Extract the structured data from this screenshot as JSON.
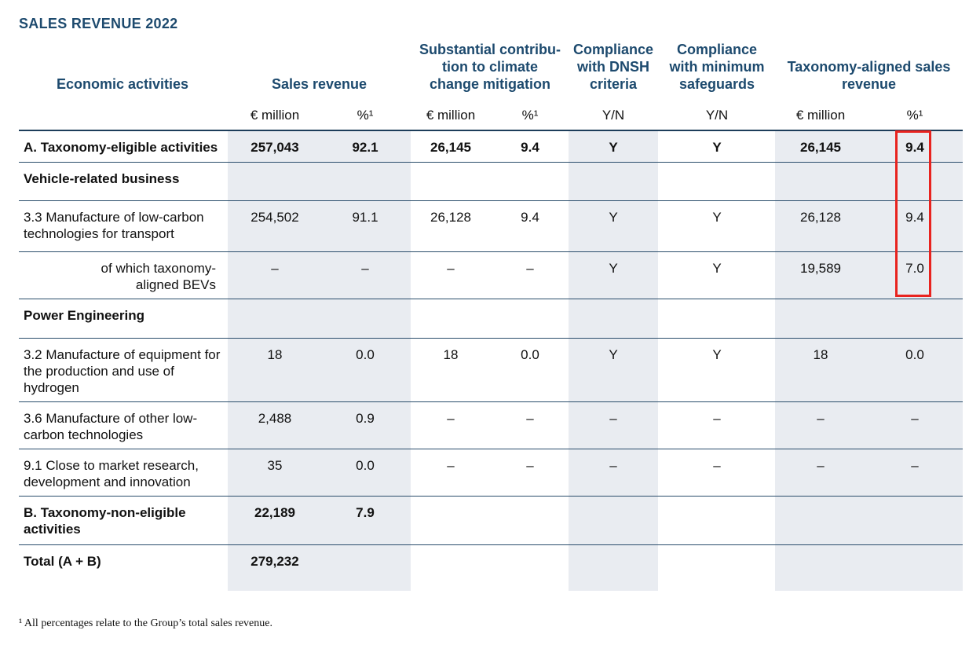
{
  "title": "SALES REVENUE 2022",
  "headers": {
    "activities": "Economic activities",
    "sales": "Sales revenue",
    "climate": "Substantial contribu-\ntion to climate\nchange mitigation",
    "dnsh": "Compliance\nwith DNSH\ncriteria",
    "safeguards": "Compliance\nwith minimum\nsafeguards",
    "aligned": "Taxonomy-aligned sales\nrevenue"
  },
  "subheaders": [
    "€ million",
    "%¹",
    "€ million",
    "%¹",
    "Y/N",
    "Y/N",
    "€ million",
    "%¹"
  ],
  "rows": [
    {
      "label": "A. Taxonomy-eligible activities",
      "values": [
        "257,043",
        "92.1",
        "26,145",
        "9.4",
        "Y",
        "Y",
        "26,145",
        "9.4"
      ]
    },
    {
      "label": "Vehicle-related business",
      "values": [
        "",
        "",
        "",
        "",
        "",
        "",
        "",
        ""
      ]
    },
    {
      "label": "3.3 Manufacture of low-carbon technologies for transport",
      "values": [
        "254,502",
        "91.1",
        "26,128",
        "9.4",
        "Y",
        "Y",
        "26,128",
        "9.4"
      ]
    },
    {
      "label": "of which taxonomy-aligned BEVs",
      "values": [
        "–",
        "–",
        "–",
        "–",
        "Y",
        "Y",
        "19,589",
        "7.0"
      ]
    },
    {
      "label": "Power Engineering",
      "values": [
        "",
        "",
        "",
        "",
        "",
        "",
        "",
        ""
      ]
    },
    {
      "label": "3.2 Manufacture of equipment for the production and use of hydrogen",
      "values": [
        "18",
        "0.0",
        "18",
        "0.0",
        "Y",
        "Y",
        "18",
        "0.0"
      ]
    },
    {
      "label": "3.6 Manufacture of other low-carbon technologies",
      "values": [
        "2,488",
        "0.9",
        "–",
        "–",
        "–",
        "–",
        "–",
        "–"
      ]
    },
    {
      "label": "9.1 Close to market research, development and innovation",
      "values": [
        "35",
        "0.0",
        "–",
        "–",
        "–",
        "–",
        "–",
        "–"
      ]
    },
    {
      "label": "B. Taxonomy-non-eligible activities",
      "values": [
        "22,189",
        "7.9",
        "",
        "",
        "",
        "",
        "",
        ""
      ]
    },
    {
      "label": "Total (A + B)",
      "values": [
        "279,232",
        "",
        "",
        "",
        "",
        "",
        "",
        ""
      ]
    }
  ],
  "footnote": "¹ All percentages relate to the Group’s total sales revenue.",
  "colors": {
    "header": "#1d4a6e",
    "shade": "#e9ecf1",
    "highlight": "#e8231f"
  }
}
